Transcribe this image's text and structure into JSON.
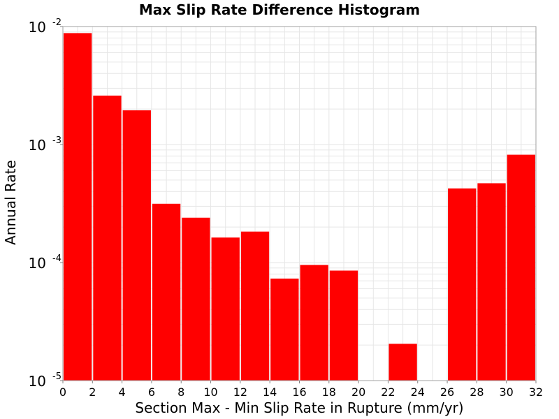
{
  "chart_data": {
    "type": "bar",
    "title": "Max Slip Rate Difference Histogram",
    "xlabel": "Section Max - Min Slip Rate in Rupture (mm/yr)",
    "ylabel": "Annual Rate",
    "y_scale": "log",
    "xlim": [
      0,
      32
    ],
    "ylim": [
      1e-05,
      0.01
    ],
    "bar_color": "#ff0000",
    "x_ticks": [
      "0",
      "2",
      "4",
      "6",
      "8",
      "10",
      "12",
      "14",
      "16",
      "18",
      "20",
      "22",
      "24",
      "26",
      "28",
      "30",
      "32"
    ],
    "y_ticks": [
      {
        "base": "10",
        "exp": "-2"
      },
      {
        "base": "10",
        "exp": "-3"
      },
      {
        "base": "10",
        "exp": "-4"
      },
      {
        "base": "10",
        "exp": "-5"
      }
    ],
    "bins": [
      {
        "x_start": 0,
        "x_end": 2,
        "value": 0.0088
      },
      {
        "x_start": 2,
        "x_end": 4,
        "value": 0.0026
      },
      {
        "x_start": 4,
        "x_end": 6,
        "value": 0.00195
      },
      {
        "x_start": 6,
        "x_end": 8,
        "value": 0.000315
      },
      {
        "x_start": 8,
        "x_end": 10,
        "value": 0.00024
      },
      {
        "x_start": 10,
        "x_end": 12,
        "value": 0.000163
      },
      {
        "x_start": 12,
        "x_end": 14,
        "value": 0.000183
      },
      {
        "x_start": 14,
        "x_end": 16,
        "value": 7.32e-05
      },
      {
        "x_start": 16,
        "x_end": 18,
        "value": 9.55e-05
      },
      {
        "x_start": 18,
        "x_end": 20,
        "value": 8.55e-05
      },
      {
        "x_start": 22,
        "x_end": 24,
        "value": 2.05e-05
      },
      {
        "x_start": 26,
        "x_end": 28,
        "value": 0.000425
      },
      {
        "x_start": 28,
        "x_end": 30,
        "value": 0.00047
      },
      {
        "x_start": 30,
        "x_end": 32,
        "value": 0.00082
      }
    ]
  }
}
